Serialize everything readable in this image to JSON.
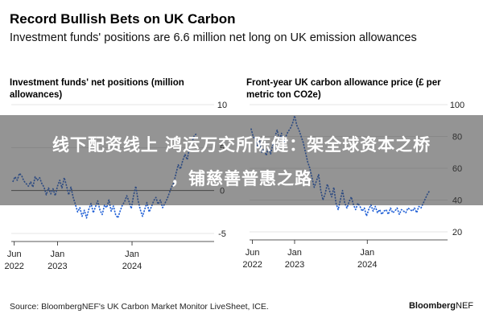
{
  "header": {
    "title": "Record Bullish Bets on UK Carbon",
    "subtitle": "Investment funds' positions are 6.6 million net long on UK emission allowances"
  },
  "chart_data": [
    {
      "type": "line",
      "title": "Investment funds' net positions (million allowances)",
      "y_ticks": [
        "10",
        "5",
        "0",
        "-5"
      ],
      "ylim": [
        -5,
        10
      ],
      "x_ticks": [
        {
          "label": [
            "Jun",
            "2022"
          ],
          "x": 2022.42
        },
        {
          "label": [
            "Jan",
            "2023"
          ],
          "x": 2023.0
        },
        {
          "label": [
            "Jan",
            "2024"
          ],
          "x": 2024.0
        }
      ],
      "xlim": [
        2022.38,
        2024.95
      ],
      "series": [
        {
          "x": [
            2022.4,
            2022.43,
            2022.46,
            2022.49,
            2022.52,
            2022.55,
            2022.58,
            2022.61,
            2022.64,
            2022.67,
            2022.7,
            2022.73,
            2022.76,
            2022.79,
            2022.82,
            2022.85,
            2022.88,
            2022.91,
            2022.94,
            2022.97,
            2023.0,
            2023.03,
            2023.06,
            2023.09,
            2023.12,
            2023.15,
            2023.18,
            2023.21,
            2023.24,
            2023.27,
            2023.3,
            2023.33,
            2023.36,
            2023.39,
            2023.42,
            2023.45,
            2023.48,
            2023.51,
            2023.54,
            2023.57,
            2023.6,
            2023.63,
            2023.66,
            2023.69,
            2023.72,
            2023.75,
            2023.78,
            2023.81,
            2023.84,
            2023.87,
            2023.9,
            2023.93,
            2023.96,
            2023.99,
            2024.02,
            2024.05,
            2024.08,
            2024.11,
            2024.14,
            2024.17,
            2024.2,
            2024.23,
            2024.26,
            2024.29,
            2024.32,
            2024.35,
            2024.38,
            2024.41,
            2024.44,
            2024.47,
            2024.5,
            2024.53,
            2024.56,
            2024.59,
            2024.62,
            2024.65,
            2024.68,
            2024.71,
            2024.74,
            2024.77,
            2024.8,
            2024.83,
            2024.86
          ],
          "y": [
            1.0,
            1.6,
            1.2,
            2.0,
            1.7,
            1.1,
            0.8,
            0.5,
            1.0,
            0.4,
            1.6,
            1.2,
            1.5,
            0.8,
            0.4,
            -0.5,
            0.3,
            -0.4,
            0.2,
            -0.6,
            0.5,
            1.2,
            0.3,
            1.5,
            0.6,
            -0.5,
            0.4,
            -0.8,
            -1.6,
            -2.5,
            -2.0,
            -3.0,
            -2.3,
            -3.2,
            -2.2,
            -1.5,
            -2.6,
            -1.9,
            -1.2,
            -2.3,
            -2.8,
            -1.7,
            -2.0,
            -1.1,
            -2.4,
            -1.8,
            -2.8,
            -3.2,
            -2.4,
            -1.7,
            -1.3,
            -0.6,
            -1.3,
            -2.1,
            -0.6,
            0.5,
            -1.1,
            -2.2,
            -3.0,
            -2.2,
            -1.4,
            -2.5,
            -1.9,
            -1.2,
            -0.8,
            -1.6,
            -1.1,
            -2.0,
            -1.5,
            -1.0,
            -0.3,
            0.4,
            0.9,
            2.0,
            3.0,
            2.5,
            3.5,
            4.2,
            3.6,
            5.0,
            5.5,
            6.3,
            6.6
          ]
        }
      ]
    },
    {
      "type": "line",
      "title": "Front-year UK carbon allowance price (£ per metric ton CO2e)",
      "y_ticks": [
        "100",
        "80",
        "60",
        "40",
        "20"
      ],
      "ylim": [
        20,
        100
      ],
      "x_ticks": [
        {
          "label": [
            "Jun",
            "2022"
          ],
          "x": 2022.42
        },
        {
          "label": [
            "Jan",
            "2023"
          ],
          "x": 2023.0
        },
        {
          "label": [
            "Jan",
            "2024"
          ],
          "x": 2024.0
        }
      ],
      "xlim": [
        2022.38,
        2024.95
      ],
      "series": [
        {
          "x": [
            2022.4,
            2022.43,
            2022.46,
            2022.49,
            2022.52,
            2022.55,
            2022.58,
            2022.61,
            2022.64,
            2022.67,
            2022.7,
            2022.73,
            2022.76,
            2022.79,
            2022.82,
            2022.85,
            2022.88,
            2022.91,
            2022.94,
            2022.97,
            2023.0,
            2023.03,
            2023.06,
            2023.09,
            2023.12,
            2023.15,
            2023.18,
            2023.21,
            2023.24,
            2023.27,
            2023.3,
            2023.33,
            2023.36,
            2023.39,
            2023.42,
            2023.45,
            2023.48,
            2023.51,
            2023.54,
            2023.57,
            2023.6,
            2023.63,
            2023.66,
            2023.69,
            2023.72,
            2023.75,
            2023.78,
            2023.81,
            2023.84,
            2023.87,
            2023.9,
            2023.93,
            2023.96,
            2023.99,
            2024.02,
            2024.05,
            2024.08,
            2024.11,
            2024.14,
            2024.17,
            2024.2,
            2024.23,
            2024.26,
            2024.29,
            2024.32,
            2024.35,
            2024.38,
            2024.41,
            2024.44,
            2024.47,
            2024.5,
            2024.53,
            2024.56,
            2024.59,
            2024.62,
            2024.65,
            2024.68,
            2024.71,
            2024.74,
            2024.77,
            2024.8,
            2024.83,
            2024.86
          ],
          "y": [
            85,
            80,
            78,
            74,
            77,
            70,
            72,
            68,
            73,
            69,
            75,
            80,
            84,
            78,
            82,
            76,
            80,
            83,
            85,
            88,
            93,
            87,
            84,
            80,
            76,
            70,
            64,
            60,
            54,
            48,
            52,
            56,
            46,
            40,
            44,
            50,
            46,
            42,
            48,
            38,
            34,
            40,
            46,
            38,
            35,
            39,
            42,
            37,
            34,
            38,
            36,
            33,
            35,
            30,
            34,
            37,
            33,
            36,
            32,
            34,
            31,
            33,
            34,
            31,
            35,
            32,
            33,
            35,
            31,
            34,
            33,
            32,
            35,
            34,
            33,
            35,
            32,
            36,
            35,
            38,
            41,
            44,
            46
          ]
        }
      ]
    }
  ],
  "banner": {
    "line1": "线下配资线上 鸿运万交所陈健：架全球资本之桥",
    "line2": "，铺慈善普惠之路"
  },
  "footer": {
    "source": "Source: BloombergNEF's UK Carbon Market Monitor LiveSheet, ICE.",
    "brand_bold": "Bloomberg",
    "brand_rest": "NEF"
  },
  "colors": {
    "line": "#1f5fd6",
    "grid": "#dddddd",
    "zero_line": "#555555"
  }
}
